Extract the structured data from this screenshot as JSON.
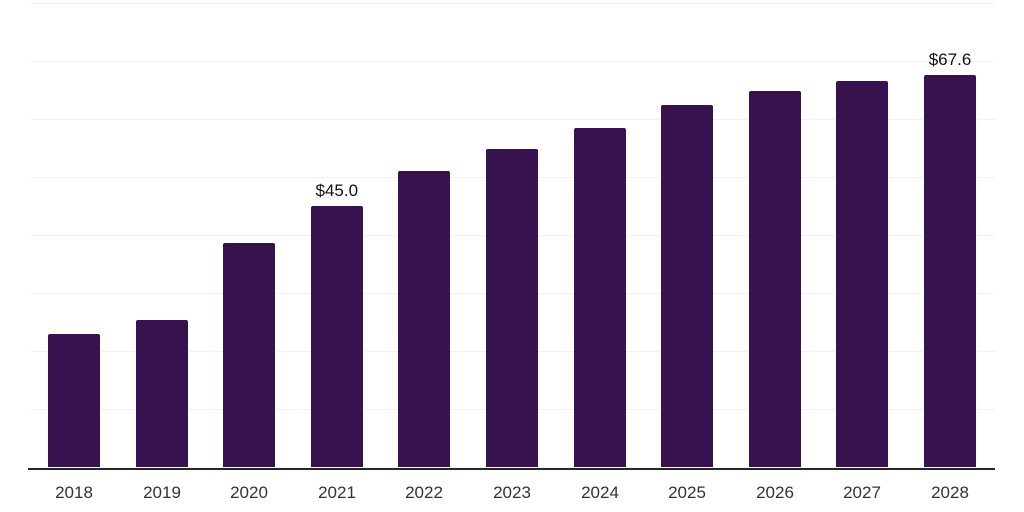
{
  "chart_data": {
    "type": "bar",
    "title": "",
    "xlabel": "",
    "ylabel": "",
    "categories": [
      "2018",
      "2019",
      "2020",
      "2021",
      "2022",
      "2023",
      "2024",
      "2025",
      "2026",
      "2027",
      "2028"
    ],
    "values": [
      22.9,
      25.4,
      38.7,
      45.0,
      51.1,
      54.8,
      58.4,
      62.4,
      64.8,
      66.5,
      67.6
    ],
    "bar_labels": [
      "",
      "",
      "",
      "$45.0",
      "",
      "",
      "",
      "",
      "",
      "",
      "$67.6"
    ],
    "ylim": [
      0,
      80
    ],
    "grid": "horizontal",
    "grid_interval": 10,
    "legend": "none",
    "style": {
      "bar_color": "#37124f",
      "grid_color": "#f2f2f2",
      "axis_color": "#262626",
      "value_label_color": "#111111",
      "tick_label_color": "#333333",
      "background_color": "#ffffff"
    }
  }
}
